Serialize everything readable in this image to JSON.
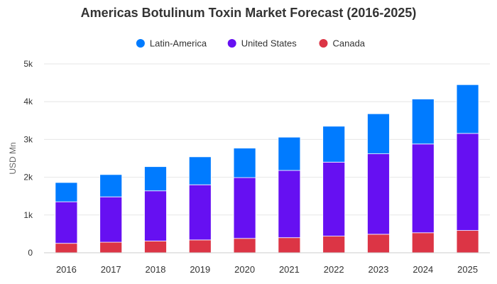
{
  "chart_data": {
    "type": "bar",
    "stacked": true,
    "title": "Americas Botulinum Toxin Market Forecast (2016-2025)",
    "xlabel": "",
    "ylabel": "USD Mn",
    "ylim": [
      0,
      5000
    ],
    "y_ticks": [
      0,
      1000,
      2000,
      3000,
      4000,
      5000
    ],
    "y_tick_labels": [
      "0",
      "1k",
      "2k",
      "3k",
      "4k",
      "5k"
    ],
    "grid": true,
    "legend_position": "top-center",
    "categories": [
      "2016",
      "2017",
      "2018",
      "2019",
      "2020",
      "2021",
      "2022",
      "2023",
      "2024",
      "2025"
    ],
    "series": [
      {
        "name": "Canada",
        "color": "#dc3545",
        "values": [
          250,
          280,
          310,
          340,
          380,
          400,
          440,
          490,
          530,
          590
        ]
      },
      {
        "name": "United States",
        "color": "#6610f2",
        "values": [
          1100,
          1200,
          1330,
          1460,
          1610,
          1780,
          1960,
          2130,
          2350,
          2570
        ]
      },
      {
        "name": "Latin-America",
        "color": "#007bff",
        "values": [
          510,
          590,
          640,
          740,
          780,
          880,
          950,
          1060,
          1190,
          1290
        ]
      }
    ],
    "legend_order": [
      "Latin-America",
      "United States",
      "Canada"
    ]
  }
}
